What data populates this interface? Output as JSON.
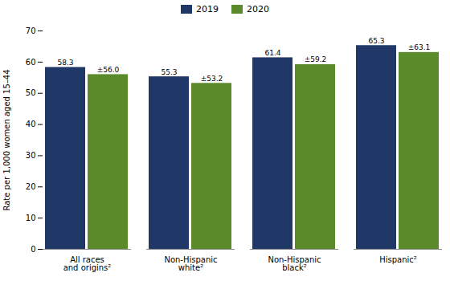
{
  "chart_data": {
    "type": "bar",
    "categories": [
      "All races\nand origins²",
      "Non-Hispanic\nwhite²",
      "Non-Hispanic\nblack²",
      "Hispanic²"
    ],
    "series": [
      {
        "name": "2019",
        "color": "#1f3868",
        "values": [
          58.3,
          55.3,
          61.4,
          65.3
        ]
      },
      {
        "name": "2020",
        "color": "#5a8a2a",
        "values": [
          56.0,
          53.2,
          59.2,
          63.1
        ],
        "value_labels": [
          "±56.0",
          "±53.2",
          "±59.2",
          "±63.1"
        ]
      }
    ],
    "ylabel": "Rate per 1,000 women aged 15–44",
    "ylim": [
      0,
      70
    ],
    "yticks": [
      0,
      10,
      20,
      30,
      40,
      50,
      60,
      70
    ],
    "data_labels": true,
    "legend": "top",
    "grid": false
  }
}
